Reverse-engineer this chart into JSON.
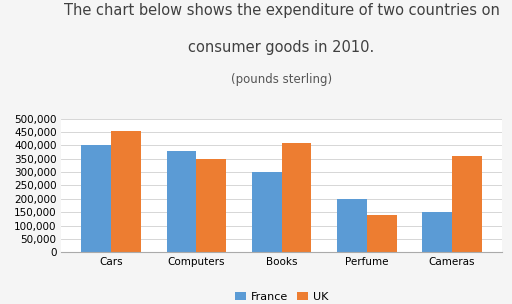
{
  "title_line1": "The chart below shows the expenditure of two countries on",
  "title_line2": "consumer goods in 2010.",
  "title_line3": "(pounds sterling)",
  "categories": [
    "Cars",
    "Computers",
    "Books",
    "Perfume",
    "Cameras"
  ],
  "france_values": [
    400000,
    380000,
    300000,
    200000,
    150000
  ],
  "uk_values": [
    455000,
    350000,
    407000,
    140000,
    360000
  ],
  "france_color": "#5b9bd5",
  "uk_color": "#ed7d31",
  "ylim": [
    0,
    500000
  ],
  "yticks": [
    0,
    50000,
    100000,
    150000,
    200000,
    250000,
    300000,
    350000,
    400000,
    450000,
    500000
  ],
  "legend_labels": [
    "France",
    "UK"
  ],
  "background_color": "#f5f5f5",
  "plot_background": "#ffffff",
  "title_fontsize": 10.5,
  "subtitle_fontsize": 8.5,
  "tick_fontsize": 7.5,
  "legend_fontsize": 8
}
